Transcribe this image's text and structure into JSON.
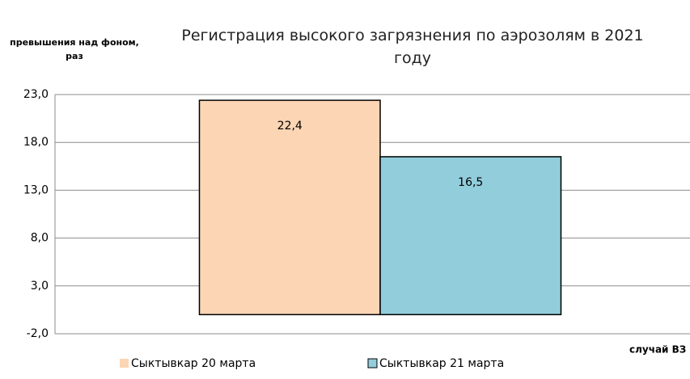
{
  "chart_data": {
    "type": "bar",
    "title": "Регистрация высокого загрязнения по аэрозолям в 2021 году",
    "y_label": "превышения над фоном, раз",
    "x_label": "случай ВЗ",
    "categories": [
      null
    ],
    "series": [
      {
        "name": "Сыктывкар 20 марта",
        "color": "#fcd5b4",
        "values": [
          22.4
        ],
        "value_labels": [
          "22,4"
        ]
      },
      {
        "name": "Сыктывкар 21 марта",
        "color": "#92cddc",
        "values": [
          16.5
        ],
        "value_labels": [
          "16,5"
        ]
      }
    ],
    "ylim": [
      -2,
      23
    ],
    "yticks": [
      {
        "value": -2,
        "label": "-2,0"
      },
      {
        "value": 3,
        "label": "3,0"
      },
      {
        "value": 8,
        "label": "8,0"
      },
      {
        "value": 13,
        "label": "13,0"
      },
      {
        "value": 18,
        "label": "18,0"
      },
      {
        "value": 23,
        "label": "23,0"
      }
    ],
    "grid": true,
    "legend": "bottom"
  }
}
